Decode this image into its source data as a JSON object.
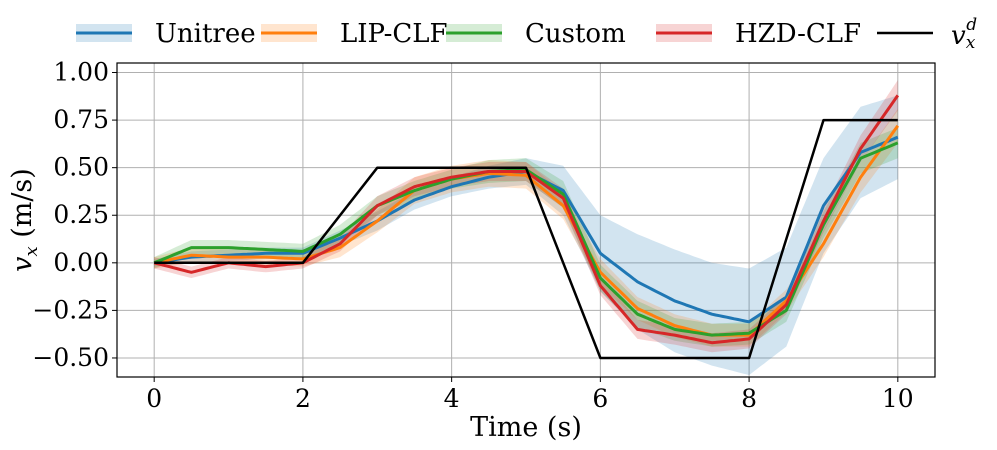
{
  "chart_data": {
    "type": "line",
    "xlabel": "Time (s)",
    "ylabel_main": "v",
    "ylabel_sub": "x",
    "ylabel_unit": "(m/s)",
    "xlim": [
      -0.5,
      10.5
    ],
    "ylim": [
      -0.6,
      1.05
    ],
    "grid": true,
    "legend_position": "top, outside plot, single row",
    "x_ticks": [
      0,
      2,
      4,
      6,
      8,
      10
    ],
    "x_tick_labels": [
      "0",
      "2",
      "4",
      "6",
      "8",
      "10"
    ],
    "y_ticks": [
      1.0,
      0.75,
      0.5,
      0.25,
      0.0,
      -0.25,
      -0.5
    ],
    "y_tick_labels": [
      "1.00",
      "0.75",
      "0.50",
      "0.25",
      "0.00",
      "−0.25",
      "−0.50"
    ],
    "series": [
      {
        "name": "Unitree",
        "color": "#1f77b4",
        "x": [
          0,
          0.5,
          1,
          1.5,
          2,
          2.5,
          3,
          3.5,
          4,
          4.5,
          5,
          5.5,
          6,
          6.5,
          7,
          7.5,
          8,
          8.5,
          9,
          9.5,
          10
        ],
        "y": [
          0.0,
          0.03,
          0.04,
          0.05,
          0.05,
          0.13,
          0.22,
          0.33,
          0.4,
          0.45,
          0.48,
          0.38,
          0.05,
          -0.1,
          -0.2,
          -0.27,
          -0.31,
          -0.18,
          0.3,
          0.58,
          0.66
        ],
        "band_halfwidth": [
          0.02,
          0.03,
          0.03,
          0.03,
          0.03,
          0.04,
          0.05,
          0.05,
          0.05,
          0.06,
          0.07,
          0.13,
          0.2,
          0.25,
          0.27,
          0.27,
          0.28,
          0.26,
          0.25,
          0.24,
          0.22
        ]
      },
      {
        "name": "LIP-CLF",
        "color": "#ff7f0e",
        "x": [
          0,
          0.5,
          1,
          1.5,
          2,
          2.5,
          3,
          3.5,
          4,
          4.5,
          5,
          5.5,
          6,
          6.5,
          7,
          7.5,
          8,
          8.5,
          9,
          9.5,
          10
        ],
        "y": [
          0.0,
          0.04,
          0.03,
          0.03,
          0.02,
          0.08,
          0.22,
          0.38,
          0.44,
          0.47,
          0.46,
          0.3,
          -0.05,
          -0.24,
          -0.33,
          -0.38,
          -0.38,
          -0.2,
          0.1,
          0.45,
          0.72
        ],
        "band_halfwidth": [
          0.03,
          0.04,
          0.04,
          0.04,
          0.04,
          0.05,
          0.06,
          0.07,
          0.07,
          0.07,
          0.07,
          0.07,
          0.07,
          0.06,
          0.06,
          0.06,
          0.06,
          0.06,
          0.07,
          0.08,
          0.09
        ]
      },
      {
        "name": "Custom",
        "color": "#2ca02c",
        "x": [
          0,
          0.5,
          1,
          1.5,
          2,
          2.5,
          3,
          3.5,
          4,
          4.5,
          5,
          5.5,
          6,
          6.5,
          7,
          7.5,
          8,
          8.5,
          9,
          9.5,
          10
        ],
        "y": [
          0.0,
          0.08,
          0.08,
          0.07,
          0.06,
          0.15,
          0.3,
          0.38,
          0.44,
          0.48,
          0.49,
          0.36,
          -0.08,
          -0.27,
          -0.35,
          -0.38,
          -0.37,
          -0.25,
          0.2,
          0.55,
          0.63
        ],
        "band_halfwidth": [
          0.03,
          0.04,
          0.04,
          0.04,
          0.04,
          0.05,
          0.05,
          0.05,
          0.05,
          0.06,
          0.06,
          0.07,
          0.07,
          0.07,
          0.06,
          0.06,
          0.06,
          0.06,
          0.07,
          0.08,
          0.08
        ]
      },
      {
        "name": "HZD-CLF",
        "color": "#d62728",
        "x": [
          0,
          0.5,
          1,
          1.5,
          2,
          2.5,
          3,
          3.5,
          4,
          4.5,
          5,
          5.5,
          6,
          6.5,
          7,
          7.5,
          8,
          8.5,
          9,
          9.5,
          10
        ],
        "y": [
          0.0,
          -0.05,
          0.0,
          -0.02,
          0.0,
          0.1,
          0.3,
          0.4,
          0.45,
          0.48,
          0.48,
          0.34,
          -0.12,
          -0.35,
          -0.38,
          -0.42,
          -0.4,
          -0.22,
          0.22,
          0.6,
          0.88
        ],
        "band_halfwidth": [
          0.03,
          0.03,
          0.03,
          0.03,
          0.03,
          0.04,
          0.05,
          0.05,
          0.05,
          0.05,
          0.05,
          0.05,
          0.05,
          0.05,
          0.05,
          0.05,
          0.05,
          0.05,
          0.06,
          0.07,
          0.08
        ]
      },
      {
        "name": "v_x^d",
        "color": "#000000",
        "x": [
          0,
          2,
          3,
          5,
          6,
          8,
          9,
          10
        ],
        "y": [
          0.0,
          0.0,
          0.5,
          0.5,
          -0.5,
          -0.5,
          0.75,
          0.75
        ]
      }
    ]
  },
  "legend": {
    "entries": [
      {
        "label": "Unitree",
        "color": "#1f77b4"
      },
      {
        "label": "LIP-CLF",
        "color": "#ff7f0e"
      },
      {
        "label": "Custom",
        "color": "#2ca02c"
      },
      {
        "label": "HZD-CLF",
        "color": "#d62728"
      }
    ],
    "reference_main": "v",
    "reference_sub": "x",
    "reference_sup": "d",
    "reference_color": "#000000"
  }
}
